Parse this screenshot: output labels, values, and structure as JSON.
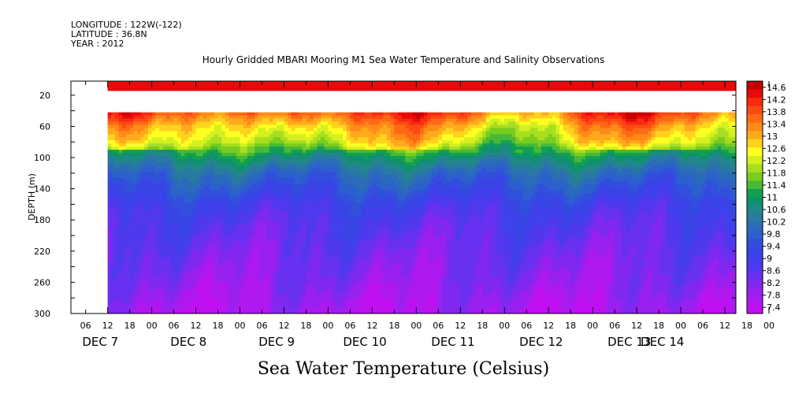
{
  "header": {
    "longitude": "LONGITUDE : 122W(-122)",
    "latitude": "LATITUDE : 36.8N",
    "year": "YEAR : 2012",
    "title": "Hourly Gridded MBARI Mooring M1 Sea Water Temperature and Salinity Observations"
  },
  "footer": {
    "label": "Sea Water Temperature (Celsius)"
  },
  "chart_data": {
    "type": "heatmap",
    "title": "Hourly Gridded MBARI Mooring M1 Sea Water Temperature and Salinity Observations",
    "xlabel": "",
    "ylabel": "DEPTH (m)",
    "colorbar_label": "Sea Water Temperature (Celsius)",
    "x_hour_ticks": [
      "06",
      "12",
      "18",
      "00",
      "06",
      "12",
      "18",
      "00",
      "06",
      "12",
      "18",
      "00",
      "06",
      "12",
      "18",
      "00",
      "06",
      "12",
      "18",
      "00",
      "06",
      "12",
      "18",
      "00",
      "06",
      "12",
      "18",
      "00",
      "06",
      "12",
      "18",
      "00"
    ],
    "x_day_labels": [
      "DEC 7",
      "DEC 8",
      "DEC 9",
      "DEC 10",
      "DEC 11",
      "DEC 12",
      "DEC 13",
      "DEC 14"
    ],
    "x_range_hours_from_dec7_00": [
      2,
      183
    ],
    "data_start_hours_from_dec7_00": 12,
    "y_ticks": [
      20,
      60,
      100,
      140,
      180,
      220,
      260,
      300
    ],
    "ylim": [
      300,
      2
    ],
    "y_reversed": true,
    "colorbar_ticks": [
      "14.6",
      "14.2",
      "13.8",
      "13.4",
      "13",
      "12.6",
      "12.2",
      "11.8",
      "11.4",
      "11",
      "10.6",
      "10.2",
      "9.8",
      "9.4",
      "9",
      "8.6",
      "8.2",
      "7.8",
      "7.4"
    ],
    "colorbar_range": [
      7.2,
      14.8
    ],
    "colorbar_colors": [
      "#c40000",
      "#e80a0a",
      "#f82a10",
      "#fc4a12",
      "#fe6a14",
      "#ff8a18",
      "#ffaa1c",
      "#ffd21e",
      "#ffff22",
      "#d4f020",
      "#a8de20",
      "#78cc20",
      "#48b838",
      "#10a050",
      "#10906c",
      "#208888",
      "#287aa0",
      "#2a6cb8",
      "#2c60cc",
      "#3050dc",
      "#3844e4",
      "#4040ec",
      "#5038ee",
      "#6830f0",
      "#8028f0",
      "#9a20f0",
      "#b018f0",
      "#c010f2"
    ],
    "depth_profile": [
      {
        "depth": 10,
        "temp": 14.3
      },
      {
        "depth": 20,
        "temp": null
      },
      {
        "depth": 30,
        "temp": null
      },
      {
        "depth": 40,
        "temp": 13.6
      },
      {
        "depth": 60,
        "temp": 12.6
      },
      {
        "depth": 80,
        "temp": 12.0
      },
      {
        "depth": 100,
        "temp": 10.8
      },
      {
        "depth": 120,
        "temp": 10.0
      },
      {
        "depth": 140,
        "temp": 9.5
      },
      {
        "depth": 160,
        "temp": 9.0
      },
      {
        "depth": 180,
        "temp": 8.7
      },
      {
        "depth": 220,
        "temp": 8.3
      },
      {
        "depth": 260,
        "temp": 8.0
      },
      {
        "depth": 300,
        "temp": 7.6
      }
    ]
  }
}
